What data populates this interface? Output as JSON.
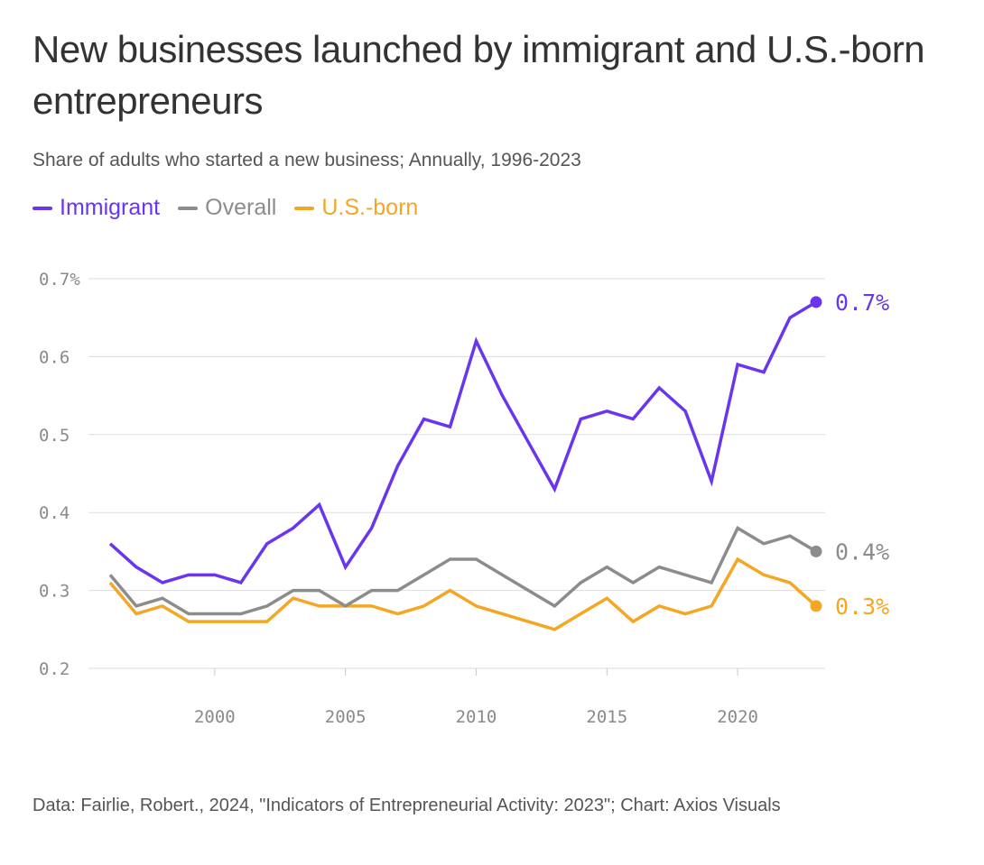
{
  "header": {
    "title": "New businesses launched by immigrant and U.S.-born entrepreneurs",
    "subtitle": "Share of adults who started a new business; Annually, 1996-2023"
  },
  "footer": {
    "source": "Data: Fairlie, Robert., 2024, \"Indicators of Entrepreneurial Activity: 2023\"; Chart: Axios Visuals"
  },
  "colors": {
    "immigrant": "#6a35ee",
    "overall": "#8c8c8c",
    "usborn": "#f5a623",
    "grid": "#dddddd"
  },
  "chart_data": {
    "type": "line",
    "title": "New businesses launched by immigrant and U.S.-born entrepreneurs",
    "subtitle": "Share of adults who started a new business; Annually, 1996-2023",
    "xlabel": "",
    "ylabel": "",
    "ylim": [
      0.2,
      0.7
    ],
    "xlim": [
      1996,
      2023
    ],
    "grid": true,
    "legend_position": "top-left",
    "y_ticks": [
      {
        "value": 0.7,
        "label": "0.7%"
      },
      {
        "value": 0.6,
        "label": "0.6"
      },
      {
        "value": 0.5,
        "label": "0.5"
      },
      {
        "value": 0.4,
        "label": "0.4"
      },
      {
        "value": 0.3,
        "label": "0.3"
      },
      {
        "value": 0.2,
        "label": "0.2"
      }
    ],
    "x_ticks": [
      {
        "value": 2000,
        "label": "2000"
      },
      {
        "value": 2005,
        "label": "2005"
      },
      {
        "value": 2010,
        "label": "2010"
      },
      {
        "value": 2015,
        "label": "2015"
      },
      {
        "value": 2020,
        "label": "2020"
      }
    ],
    "x": [
      1996,
      1997,
      1998,
      1999,
      2000,
      2001,
      2002,
      2003,
      2004,
      2005,
      2006,
      2007,
      2008,
      2009,
      2010,
      2011,
      2012,
      2013,
      2014,
      2015,
      2016,
      2017,
      2018,
      2019,
      2020,
      2021,
      2022,
      2023
    ],
    "series": [
      {
        "key": "immigrant",
        "name": "Immigrant",
        "color": "#6a35ee",
        "end_label": "0.7%",
        "values": [
          0.36,
          0.33,
          0.31,
          0.32,
          0.32,
          0.31,
          0.36,
          0.38,
          0.41,
          0.33,
          0.38,
          0.46,
          0.52,
          0.51,
          0.62,
          0.55,
          0.49,
          0.43,
          0.52,
          0.53,
          0.52,
          0.56,
          0.53,
          0.44,
          0.59,
          0.58,
          0.65,
          0.67
        ]
      },
      {
        "key": "overall",
        "name": "Overall",
        "color": "#8c8c8c",
        "end_label": "0.4%",
        "values": [
          0.32,
          0.28,
          0.29,
          0.27,
          0.27,
          0.27,
          0.28,
          0.3,
          0.3,
          0.28,
          0.3,
          0.3,
          0.32,
          0.34,
          0.34,
          0.32,
          0.3,
          0.28,
          0.31,
          0.33,
          0.31,
          0.33,
          0.32,
          0.31,
          0.38,
          0.36,
          0.37,
          0.35
        ]
      },
      {
        "key": "usborn",
        "name": "U.S.-born",
        "color": "#f5a623",
        "end_label": "0.3%",
        "values": [
          0.31,
          0.27,
          0.28,
          0.26,
          0.26,
          0.26,
          0.26,
          0.29,
          0.28,
          0.28,
          0.28,
          0.27,
          0.28,
          0.3,
          0.28,
          0.27,
          0.26,
          0.25,
          0.27,
          0.29,
          0.26,
          0.28,
          0.27,
          0.28,
          0.34,
          0.32,
          0.31,
          0.28
        ]
      }
    ]
  }
}
